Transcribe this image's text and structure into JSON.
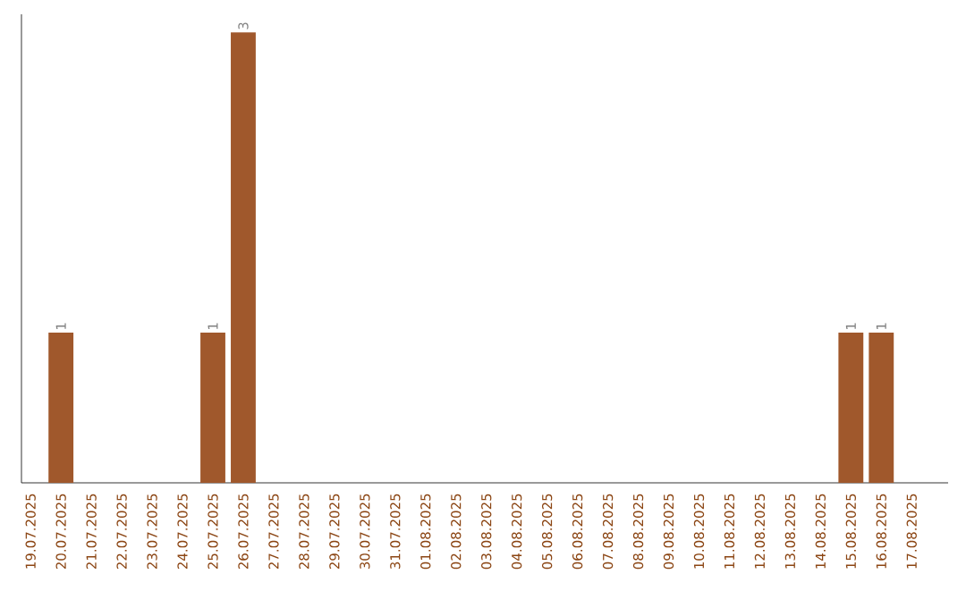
{
  "chart_data": {
    "type": "bar",
    "categories": [
      "19.07.2025",
      "20.07.2025",
      "21.07.2025",
      "22.07.2025",
      "23.07.2025",
      "24.07.2025",
      "25.07.2025",
      "26.07.2025",
      "27.07.2025",
      "28.07.2025",
      "29.07.2025",
      "30.07.2025",
      "31.07.2025",
      "01.08.2025",
      "02.08.2025",
      "03.08.2025",
      "04.08.2025",
      "05.08.2025",
      "06.08.2025",
      "07.08.2025",
      "08.08.2025",
      "09.08.2025",
      "10.08.2025",
      "11.08.2025",
      "12.08.2025",
      "13.08.2025",
      "14.08.2025",
      "15.08.2025",
      "16.08.2025",
      "17.08.2025"
    ],
    "values": [
      null,
      1,
      null,
      null,
      null,
      null,
      1,
      3,
      null,
      null,
      null,
      null,
      null,
      null,
      null,
      null,
      null,
      null,
      null,
      null,
      null,
      null,
      null,
      null,
      null,
      null,
      null,
      1,
      1,
      null
    ],
    "color": "#a0582c",
    "data_labels": true,
    "tick_labels": "x"
  }
}
